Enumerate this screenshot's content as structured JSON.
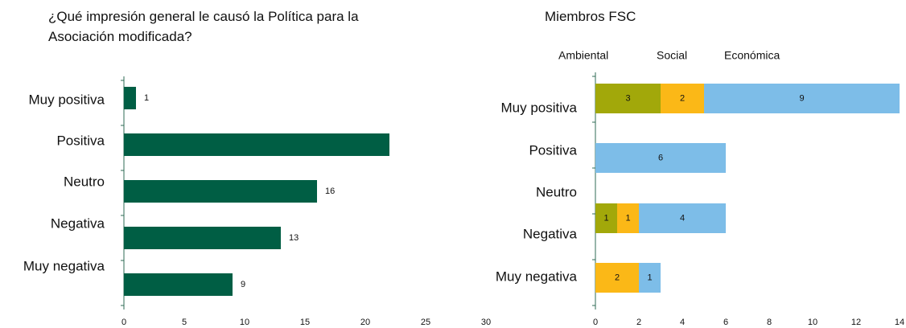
{
  "chart_data": [
    {
      "type": "hbar",
      "title": "¿Qué impresión general le causó la Política para la Asociación modificada?",
      "categories": [
        "Muy positiva",
        "Positiva",
        "Neutro",
        "Negativa",
        "Muy negativa"
      ],
      "values": [
        1,
        22,
        16,
        13,
        9
      ],
      "value_labels": [
        "1",
        null,
        "16",
        "13",
        "9"
      ],
      "color": "#005e44",
      "xlim": [
        0,
        30
      ],
      "xticks": [
        0,
        5,
        10,
        15,
        20,
        25,
        30
      ]
    },
    {
      "type": "stacked_hbar",
      "title": "Miembros FSC",
      "categories": [
        "Muy positiva",
        "Positiva",
        "Neutro",
        "Negativa",
        "Muy negativa"
      ],
      "series": [
        {
          "name": "Ambiental",
          "color": "#a2a80a",
          "values": [
            3,
            null,
            null,
            1,
            null
          ]
        },
        {
          "name": "Social",
          "color": "#fbb817",
          "values": [
            2,
            null,
            null,
            1,
            2
          ]
        },
        {
          "name": "Económica",
          "color": "#7dbde8",
          "values": [
            9,
            6,
            null,
            4,
            1
          ]
        }
      ],
      "xlim": [
        0,
        14
      ],
      "xticks": [
        0,
        2,
        4,
        6,
        8,
        10,
        12,
        14
      ]
    }
  ]
}
